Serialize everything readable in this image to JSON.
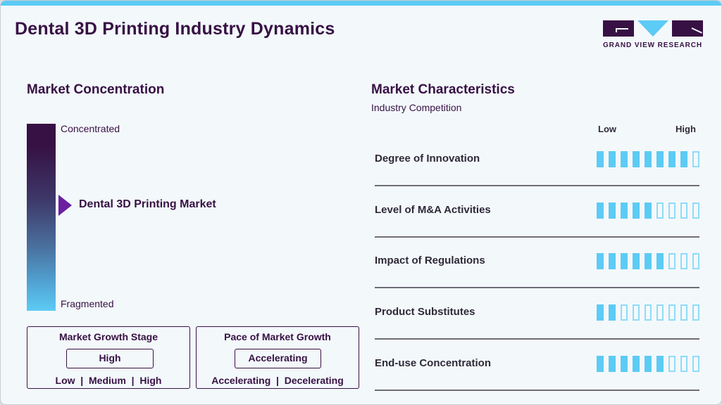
{
  "header": {
    "title": "Dental 3D Printing Industry Dynamics",
    "logo_text": "GRAND VIEW RESEARCH"
  },
  "colors": {
    "accent": "#5ccbf5",
    "brand_dark": "#371144",
    "arrow": "#6b1fa0"
  },
  "concentration": {
    "heading": "Market Concentration",
    "top_label": "Concentrated",
    "bottom_label": "Fragmented",
    "marker_label": "Dental 3D Printing Market",
    "marker_icon": "triangle-right-icon"
  },
  "growth_stage": {
    "title": "Market Growth Stage",
    "value": "High",
    "options": "Low  |  Medium  |  High"
  },
  "growth_pace": {
    "title": "Pace of Market Growth",
    "value": "Accelerating",
    "options": "Accelerating  |  Decelerating"
  },
  "characteristics": {
    "heading": "Market Characteristics",
    "subheading": "Industry Competition",
    "scale_low": "Low",
    "scale_high": "High",
    "scale_max": 9,
    "rows": [
      {
        "label": "Degree of Innovation",
        "level": 8
      },
      {
        "label": "Level of M&A Activities",
        "level": 5
      },
      {
        "label": "Impact of Regulations",
        "level": 6
      },
      {
        "label": "Product Substitutes",
        "level": 2
      },
      {
        "label": "End-use Concentration",
        "level": 6
      }
    ]
  }
}
